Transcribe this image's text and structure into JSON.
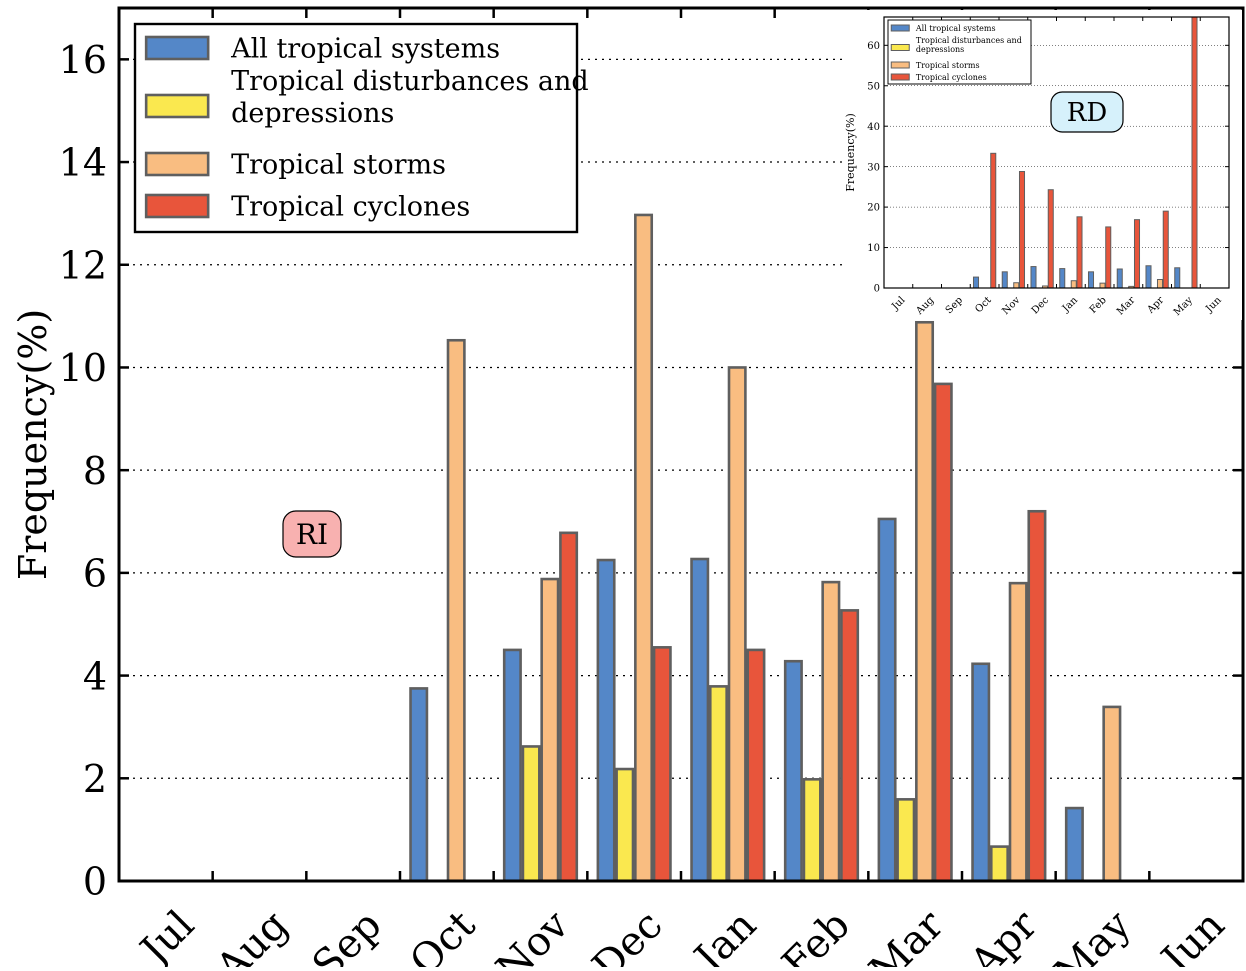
{
  "colors": {
    "all": "#5487c8",
    "disturbances": "#fae84f",
    "storms": "#f9bd81",
    "cyclones": "#e8553b",
    "edge": "#5f5f5f",
    "ri_box": "#f8b1b0",
    "rd_box": "#d6f1fb"
  },
  "chart_data": [
    {
      "type": "bar",
      "ylabel": "Frequency(%)",
      "xlabel": "",
      "ylim": [
        0,
        17
      ],
      "yticks": [
        0,
        2,
        4,
        6,
        8,
        10,
        12,
        14,
        16
      ],
      "grid": "horizontal dotted",
      "legend_position": "top-left",
      "annotation": "RI",
      "categories": [
        "Jul",
        "Aug",
        "Sep",
        "Oct",
        "Nov",
        "Dec",
        "Jan",
        "Feb",
        "Mar",
        "Apr",
        "May",
        "Jun"
      ],
      "series": [
        {
          "name": "All tropical systems",
          "color_key": "all",
          "values": [
            0,
            0,
            0,
            3.75,
            4.5,
            6.25,
            6.27,
            4.28,
            7.05,
            4.23,
            1.42,
            0
          ]
        },
        {
          "name": "Tropical disturbances and depressions",
          "color_key": "disturbances",
          "values": [
            0,
            0,
            0,
            0,
            2.62,
            2.18,
            3.79,
            1.98,
            1.59,
            0.67,
            0,
            0
          ]
        },
        {
          "name": "Tropical storms",
          "color_key": "storms",
          "values": [
            0,
            0,
            0,
            10.53,
            5.88,
            12.97,
            10.0,
            5.82,
            10.88,
            5.8,
            3.39,
            0
          ]
        },
        {
          "name": "Tropical cyclones",
          "color_key": "cyclones",
          "values": [
            0,
            0,
            0,
            0,
            6.78,
            4.55,
            4.5,
            5.27,
            9.68,
            7.2,
            0,
            0
          ]
        }
      ]
    },
    {
      "type": "bar",
      "ylabel": "Frequency(%)",
      "xlabel": "",
      "ylim": [
        0,
        67
      ],
      "yticks": [
        0,
        10,
        20,
        30,
        40,
        50,
        60
      ],
      "grid": "horizontal dotted",
      "legend_position": "top-left",
      "annotation": "RD",
      "categories": [
        "Jul",
        "Aug",
        "Sep",
        "Oct",
        "Nov",
        "Dec",
        "Jan",
        "Feb",
        "Mar",
        "Apr",
        "May",
        "Jun"
      ],
      "series": [
        {
          "name": "All tropical systems",
          "color_key": "all",
          "values": [
            0,
            0,
            0,
            2.7,
            4.0,
            5.3,
            4.8,
            4.0,
            4.7,
            5.5,
            5.0,
            0
          ]
        },
        {
          "name": "Tropical disturbances and depressions",
          "color_key": "disturbances",
          "values": [
            0,
            0,
            0,
            0,
            0,
            0,
            0,
            0,
            0,
            0,
            0,
            0
          ]
        },
        {
          "name": "Tropical storms",
          "color_key": "storms",
          "values": [
            0,
            0,
            0,
            0,
            1.3,
            0.5,
            1.8,
            1.2,
            0.4,
            2.1,
            0,
            0
          ]
        },
        {
          "name": "Tropical cyclones",
          "color_key": "cyclones",
          "values": [
            0,
            0,
            0,
            33.3,
            28.8,
            24.3,
            17.6,
            15.1,
            16.9,
            19.0,
            67.0,
            0
          ]
        }
      ]
    }
  ]
}
